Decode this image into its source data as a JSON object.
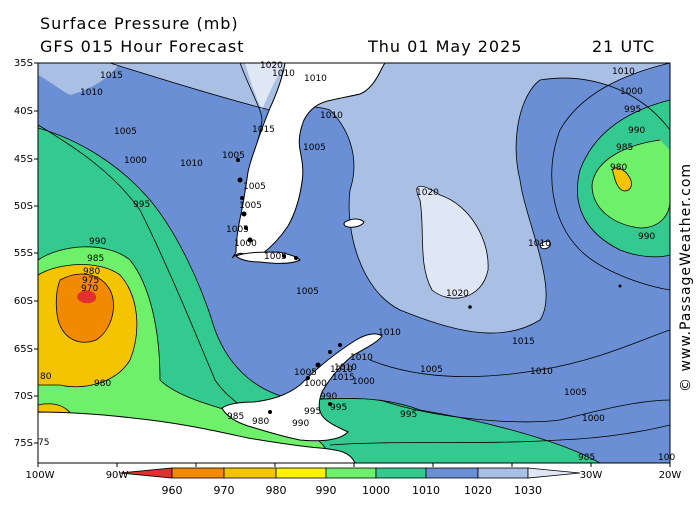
{
  "header": {
    "title": "Surface Pressure (mb)",
    "forecast": "GFS 015 Hour Forecast",
    "date": "Thu 01 May 2025",
    "time": "21 UTC"
  },
  "axes": {
    "lat_labels": [
      "35S",
      "40S",
      "45S",
      "50S",
      "55S",
      "60S",
      "65S",
      "70S",
      "75S"
    ],
    "lon_labels": [
      "100W",
      "90W",
      "80W",
      "70W",
      "60W",
      "50W",
      "40W",
      "30W",
      "20W"
    ]
  },
  "isobar_labels": [
    {
      "text": "1015"
    },
    {
      "text": "1010"
    },
    {
      "text": "1005"
    },
    {
      "text": "1000"
    },
    {
      "text": "995"
    },
    {
      "text": "990"
    },
    {
      "text": "985"
    },
    {
      "text": "980"
    },
    {
      "text": "975"
    },
    {
      "text": "970"
    },
    {
      "text": "1010"
    },
    {
      "text": "1005"
    },
    {
      "text": "1000"
    },
    {
      "text": "980"
    },
    {
      "text": "80"
    },
    {
      "text": "75"
    },
    {
      "text": "1020"
    },
    {
      "text": "1010"
    },
    {
      "text": "1010"
    },
    {
      "text": "1015"
    },
    {
      "text": "1010"
    },
    {
      "text": "1005"
    },
    {
      "text": "1005"
    },
    {
      "text": "1005"
    },
    {
      "text": "1005"
    },
    {
      "text": "1005"
    },
    {
      "text": "1020"
    },
    {
      "text": "1020"
    },
    {
      "text": "1015"
    },
    {
      "text": "1010"
    },
    {
      "text": "1010"
    },
    {
      "text": "1005"
    },
    {
      "text": "1000"
    },
    {
      "text": "995"
    },
    {
      "text": "990"
    },
    {
      "text": "985"
    },
    {
      "text": "980"
    },
    {
      "text": "990"
    },
    {
      "text": "1010"
    },
    {
      "text": "1010"
    },
    {
      "text": "1005"
    },
    {
      "text": "1000"
    },
    {
      "text": "995"
    },
    {
      "text": "990"
    },
    {
      "text": "995"
    },
    {
      "text": "985"
    },
    {
      "text": "980"
    },
    {
      "text": "990"
    },
    {
      "text": "1010"
    },
    {
      "text": "1005"
    },
    {
      "text": "1000"
    },
    {
      "text": "995"
    },
    {
      "text": "1000"
    },
    {
      "text": "1005"
    },
    {
      "text": "1010"
    },
    {
      "text": "1015"
    },
    {
      "text": "1010"
    },
    {
      "text": "985"
    },
    {
      "text": "100"
    }
  ],
  "colorbar": {
    "labels": [
      "960",
      "970",
      "980",
      "990",
      "1000",
      "1010",
      "1020",
      "1030"
    ],
    "colors": [
      "#e03030",
      "#f28a00",
      "#f5c400",
      "#fff200",
      "#6ff06a",
      "#34c98e",
      "#6a8fd4",
      "#a9bfe4",
      "#dfe7f5"
    ]
  },
  "credit": "© www.PassageWeather.com",
  "colors": {
    "deep_low": "#e8473c",
    "low970": "#f28a00",
    "low980": "#ffd21a",
    "low990": "#70ee62",
    "mid1000": "#33c48c",
    "mid1010": "#6b8fd2",
    "high1020": "#a8bee3",
    "high1030": "#dde6f4"
  }
}
